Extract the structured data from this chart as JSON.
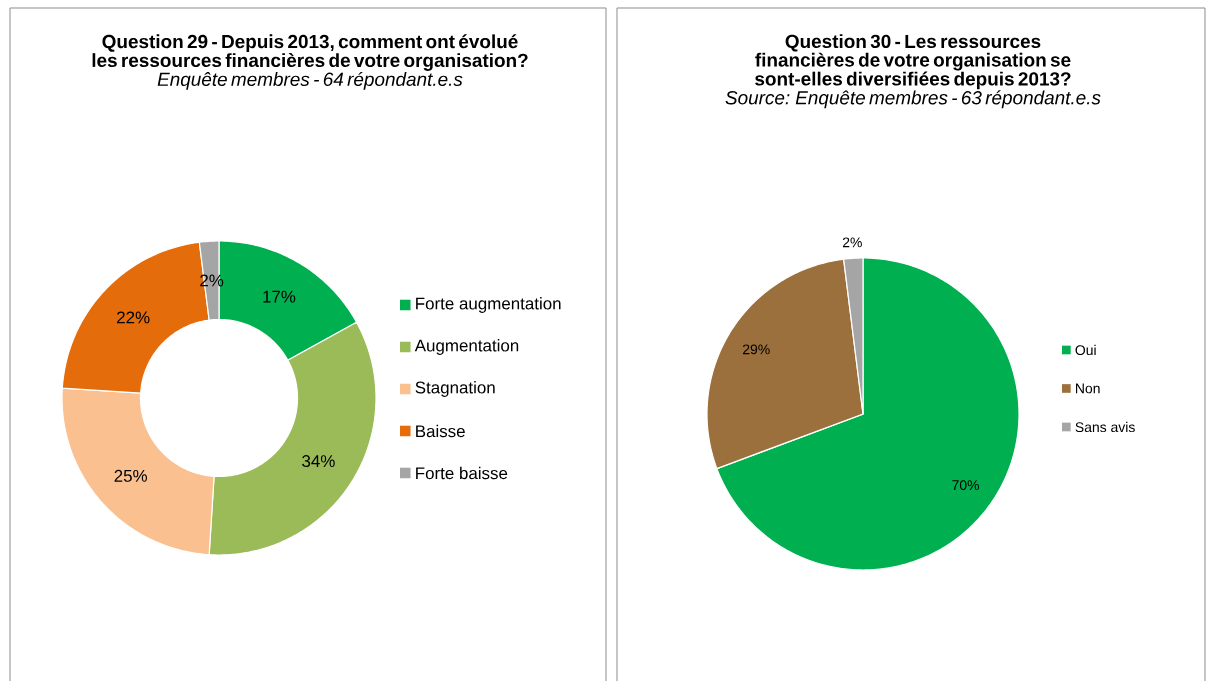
{
  "chart_data": [
    {
      "type": "donut",
      "title": "Question 29 - Depuis 2013, comment ont évolué les ressources financières de votre organisation?",
      "subtitle": "Enquête membres - 64 répondant.e.s",
      "categories": [
        "Forte augmentation",
        "Augmentation",
        "Stagnation",
        "Baisse",
        "Forte baisse"
      ],
      "values": [
        17,
        34,
        25,
        22,
        2
      ],
      "value_labels": [
        "17%",
        "34%",
        "25%",
        "22%",
        "2%"
      ],
      "colors": [
        "#00b050",
        "#9bbb59",
        "#fac090",
        "#e46c0a",
        "#a5a5a5"
      ],
      "legend": "right"
    },
    {
      "type": "pie",
      "title": "Question 30 - Les ressources financières de votre organisation se sont-elles diversifiées depuis 2013?",
      "subtitle": "Source: Enquête membres - 63 répondant.e.s",
      "categories": [
        "Oui",
        "Non",
        "Sans avis"
      ],
      "values": [
        70,
        29,
        2
      ],
      "value_labels": [
        "70%",
        "29%",
        "2%"
      ],
      "colors": [
        "#00b050",
        "#9c703c",
        "#a5a5a5"
      ],
      "legend": "right"
    }
  ]
}
